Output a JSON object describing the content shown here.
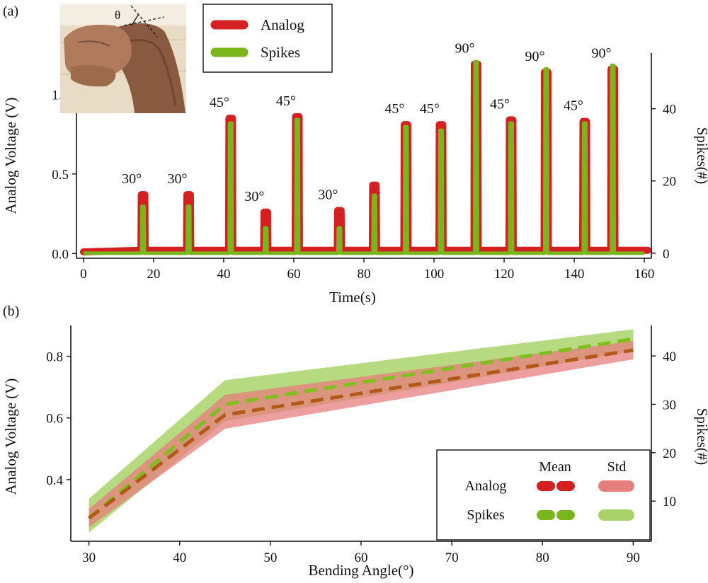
{
  "colors": {
    "analog": "#d42020",
    "spikes": "#7ab51d",
    "analog_std": "#e77e7e",
    "spikes_std": "#a9d36a",
    "mean_analog_line": "#b2591a",
    "mean_spikes_line": "#7fbf1d"
  },
  "panels": {
    "a": {
      "label": "(a)",
      "inset_angle_symbol": "θ",
      "legend": {
        "analog": "Analog",
        "spikes": "Spikes"
      },
      "xlabel": "Time(s)",
      "ylabel_left": "Analog Voltage (V)",
      "ylabel_right": "Spikes(#)"
    },
    "b": {
      "label": "(b)",
      "xlabel": "Bending Angle(°)",
      "ylabel_left": "Analog Voltage (V)",
      "ylabel_right": "Spikes(#)",
      "legend": {
        "col_mean": "Mean",
        "col_std": "Std",
        "row_analog": "Analog",
        "row_spikes": "Spikes"
      }
    }
  },
  "chart_data": [
    {
      "type": "line",
      "title": "",
      "xlabel": "Time(s)",
      "ylabel": "Analog Voltage (V)",
      "y2label": "Spikes(#)",
      "xlim": [
        -2,
        162
      ],
      "ylim": [
        -0.03,
        1.26
      ],
      "y2lim": [
        -1.4,
        55.4
      ],
      "xticks": [
        0,
        20,
        40,
        60,
        80,
        100,
        120,
        140,
        160
      ],
      "yticks": [
        0.0,
        0.5,
        1.0
      ],
      "y2ticks": [
        0,
        20,
        40
      ],
      "baseline_analog": 0.02,
      "pulses": [
        {
          "t": 17,
          "angle": "30°",
          "analog": 0.37,
          "spikes": 13
        },
        {
          "t": 30,
          "angle": "30°",
          "analog": 0.37,
          "spikes": 13
        },
        {
          "t": 42,
          "angle": "45°",
          "analog": 0.85,
          "spikes": 36
        },
        {
          "t": 52,
          "angle": "30°",
          "analog": 0.26,
          "spikes": 7
        },
        {
          "t": 61,
          "angle": "45°",
          "analog": 0.86,
          "spikes": 37
        },
        {
          "t": 73,
          "angle": "30°",
          "analog": 0.27,
          "spikes": 7
        },
        {
          "t": 83,
          "angle": "",
          "analog": 0.43,
          "spikes": 16
        },
        {
          "t": 92,
          "angle": "45°",
          "analog": 0.81,
          "spikes": 35
        },
        {
          "t": 102,
          "angle": "45°",
          "analog": 0.81,
          "spikes": 34
        },
        {
          "t": 112,
          "angle": "90°",
          "analog": 1.19,
          "spikes": 53
        },
        {
          "t": 122,
          "angle": "45°",
          "analog": 0.84,
          "spikes": 36
        },
        {
          "t": 132,
          "angle": "90°",
          "analog": 1.14,
          "spikes": 51
        },
        {
          "t": 143,
          "angle": "45°",
          "analog": 0.83,
          "spikes": 36
        },
        {
          "t": 151,
          "angle": "90°",
          "analog": 1.16,
          "spikes": 52
        }
      ],
      "series": [
        {
          "name": "Analog"
        },
        {
          "name": "Spikes"
        }
      ]
    },
    {
      "type": "area",
      "title": "",
      "xlabel": "Bending Angle(°)",
      "ylabel": "Analog Voltage (V)",
      "y2label": "Spikes(#)",
      "xlim": [
        28,
        92
      ],
      "ylim": [
        0.2,
        0.9
      ],
      "y2lim": [
        1.7,
        46.3
      ],
      "xticks": [
        30,
        40,
        50,
        60,
        70,
        80,
        90
      ],
      "yticks": [
        0.4,
        0.6,
        0.8
      ],
      "y2ticks": [
        10,
        20,
        30,
        40
      ],
      "x": [
        30,
        45,
        90
      ],
      "series": [
        {
          "name": "Analog",
          "axis": "left",
          "mean": [
            0.275,
            0.61,
            0.82
          ],
          "std_low": [
            0.245,
            0.565,
            0.79
          ],
          "std_high": [
            0.305,
            0.675,
            0.85
          ]
        },
        {
          "name": "Spikes",
          "axis": "right",
          "mean": [
            6.5,
            30,
            43.5
          ],
          "std_low": [
            3.5,
            26.5,
            41
          ],
          "std_high": [
            10.5,
            35,
            45.5
          ]
        }
      ]
    }
  ]
}
